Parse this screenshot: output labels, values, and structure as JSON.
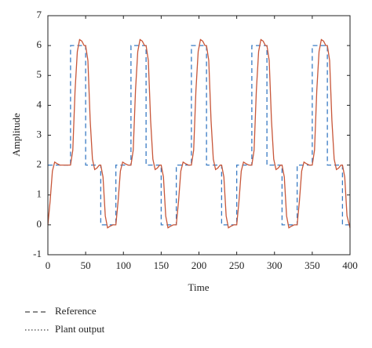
{
  "chart_data": {
    "type": "line",
    "xlabel": "Time",
    "ylabel": "Amplitude",
    "xlim": [
      0,
      400
    ],
    "xticks": [
      0,
      50,
      100,
      150,
      200,
      250,
      300,
      350,
      400
    ],
    "ylim": [
      -1,
      7
    ],
    "yticks": [
      -1,
      0,
      1,
      2,
      3,
      4,
      5,
      6,
      7
    ],
    "series": [
      {
        "name": "Reference",
        "color": "#3a7cc4",
        "linestyle": "dashed",
        "x": [
          0,
          30,
          30,
          50,
          50,
          70,
          70,
          90,
          90,
          110,
          110,
          130,
          130,
          150,
          150,
          170,
          170,
          190,
          190,
          210,
          210,
          230,
          230,
          250,
          250,
          270,
          270,
          290,
          290,
          310,
          310,
          330,
          330,
          350,
          350,
          370,
          370,
          390,
          390,
          400
        ],
        "values": [
          2,
          2,
          6,
          6,
          2,
          2,
          0,
          0,
          2,
          2,
          6,
          6,
          2,
          2,
          0,
          0,
          2,
          2,
          6,
          6,
          2,
          2,
          0,
          0,
          2,
          2,
          6,
          6,
          2,
          2,
          0,
          0,
          2,
          2,
          6,
          6,
          2,
          2,
          0,
          0
        ]
      },
      {
        "name": "Plant output",
        "color": "#c8573a",
        "linestyle": "dotted",
        "x": [
          0,
          3,
          6,
          9,
          12,
          16,
          30,
          33,
          36,
          39,
          42,
          45,
          48,
          50,
          53,
          56,
          59,
          62,
          65,
          68,
          70,
          73,
          76,
          79,
          82,
          86,
          90,
          93,
          96,
          99,
          102,
          106,
          110,
          113,
          116,
          119,
          122,
          125,
          128,
          130,
          133,
          136,
          139,
          142,
          145,
          148,
          150,
          153,
          156,
          159,
          162,
          166,
          170,
          173,
          176,
          179,
          182,
          186,
          190,
          193,
          196,
          199,
          202,
          205,
          208,
          210,
          213,
          216,
          219,
          222,
          225,
          228,
          230,
          233,
          236,
          239,
          242,
          246,
          250,
          253,
          256,
          259,
          262,
          266,
          270,
          273,
          276,
          279,
          282,
          285,
          288,
          290,
          293,
          296,
          299,
          302,
          305,
          308,
          310,
          313,
          316,
          319,
          322,
          326,
          330,
          333,
          336,
          339,
          342,
          346,
          350,
          353,
          356,
          359,
          362,
          365,
          368,
          370,
          373,
          376,
          379,
          382,
          385,
          388,
          390,
          393,
          396,
          400
        ],
        "values": [
          0,
          0.8,
          1.8,
          2.1,
          2.05,
          2,
          2,
          2.5,
          4.5,
          5.8,
          6.2,
          6.15,
          6,
          6,
          5.5,
          3.5,
          2.2,
          1.85,
          1.9,
          2,
          2,
          1.6,
          0.3,
          -0.1,
          -0.05,
          0,
          0,
          0.8,
          1.8,
          2.1,
          2.05,
          2,
          2,
          2.5,
          4.5,
          5.8,
          6.2,
          6.15,
          6,
          6,
          5.5,
          3.5,
          2.2,
          1.85,
          1.9,
          2,
          2,
          1.6,
          0.3,
          -0.1,
          -0.05,
          0,
          0,
          0.8,
          1.8,
          2.1,
          2.05,
          2,
          2,
          2.5,
          4.5,
          5.8,
          6.2,
          6.15,
          6,
          6,
          5.5,
          3.5,
          2.2,
          1.85,
          1.9,
          2,
          2,
          1.6,
          0.3,
          -0.1,
          -0.05,
          0,
          0,
          0.8,
          1.8,
          2.1,
          2.05,
          2,
          2,
          2.5,
          4.5,
          5.8,
          6.2,
          6.15,
          6,
          6,
          5.5,
          3.5,
          2.2,
          1.85,
          1.9,
          2,
          2,
          1.6,
          0.3,
          -0.1,
          -0.05,
          0,
          0,
          0.8,
          1.8,
          2.1,
          2.05,
          2,
          2,
          2.5,
          4.5,
          5.8,
          6.2,
          6.15,
          6,
          6,
          5.5,
          3.5,
          2.2,
          1.85,
          1.9,
          2,
          2,
          1.6,
          0.3,
          -0.1
        ]
      }
    ]
  }
}
